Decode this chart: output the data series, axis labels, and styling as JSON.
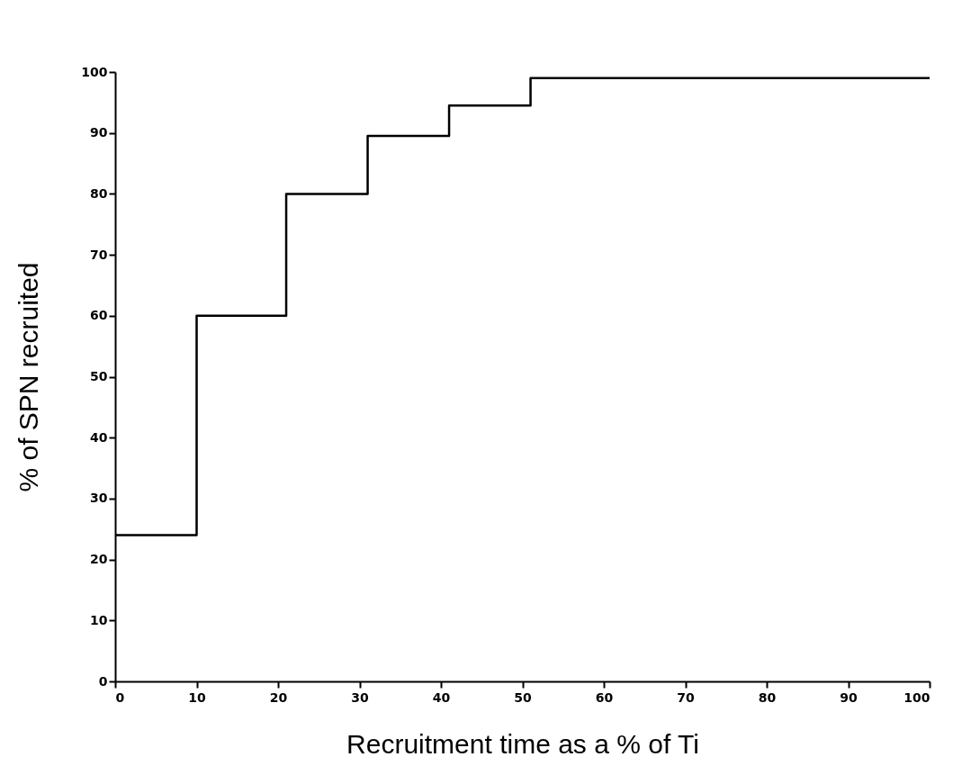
{
  "chart_data": {
    "type": "step",
    "xlabel": "Recruitment time as a % of Ti",
    "ylabel": "% of SPN recruited",
    "x": [
      0,
      10,
      21,
      31,
      41,
      51,
      100
    ],
    "values": [
      24,
      60,
      80,
      89.5,
      94.5,
      99,
      99
    ],
    "color": "#000000",
    "xlim": [
      0,
      100
    ],
    "xticks": [
      0,
      10,
      20,
      30,
      40,
      50,
      60,
      70,
      80,
      90,
      100
    ],
    "ylim": [
      0,
      100
    ],
    "yticks": [
      0,
      10,
      20,
      30,
      40,
      50,
      60,
      70,
      80,
      90,
      100
    ],
    "grid": false,
    "marker": "none",
    "line_style": "solid"
  }
}
